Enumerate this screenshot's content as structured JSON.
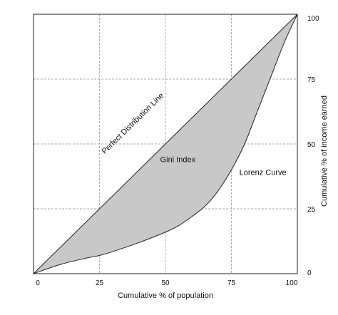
{
  "chart_data": {
    "type": "area",
    "title": "",
    "xlabel": "Cumulative % of population",
    "ylabel": "Cumulative % of income earned",
    "xlim": [
      0,
      100
    ],
    "ylim": [
      0,
      100
    ],
    "x_ticks": [
      "0",
      "25",
      "50",
      "75",
      "100"
    ],
    "y_ticks": [
      "0",
      "25",
      "50",
      "75",
      "100"
    ],
    "y_axis_side": "right",
    "grid": true,
    "grid_style": "dashed",
    "legend": "none",
    "series": [
      {
        "label_text": "Perfect Distribution Line",
        "kind": "line",
        "x": [
          0,
          100
        ],
        "y": [
          0,
          100
        ]
      },
      {
        "label_text": "Lorenz Curve",
        "kind": "line",
        "x": [
          0,
          10,
          20,
          25,
          30,
          40,
          50,
          55,
          60,
          65,
          70,
          75,
          80,
          85,
          90,
          95,
          100
        ],
        "y": [
          0,
          3.5,
          6,
          7,
          8.5,
          12,
          16,
          18.5,
          22,
          26,
          32,
          40,
          50,
          63,
          76,
          89,
          100
        ]
      }
    ],
    "shaded_region": {
      "label_text": "Gini Index",
      "between": [
        "Perfect Distribution Line",
        "Lorenz Curve"
      ],
      "fill_color": "#c8c8c8"
    },
    "annotations": {
      "perfect_line": {
        "text": "Perfect Distribution Line",
        "x": 27,
        "y": 46
      },
      "gini": {
        "text": "Gini  Index",
        "x": 48,
        "y": 43
      },
      "lorenz": {
        "text": "Lorenz Curve",
        "x": 78,
        "y": 38
      }
    }
  }
}
